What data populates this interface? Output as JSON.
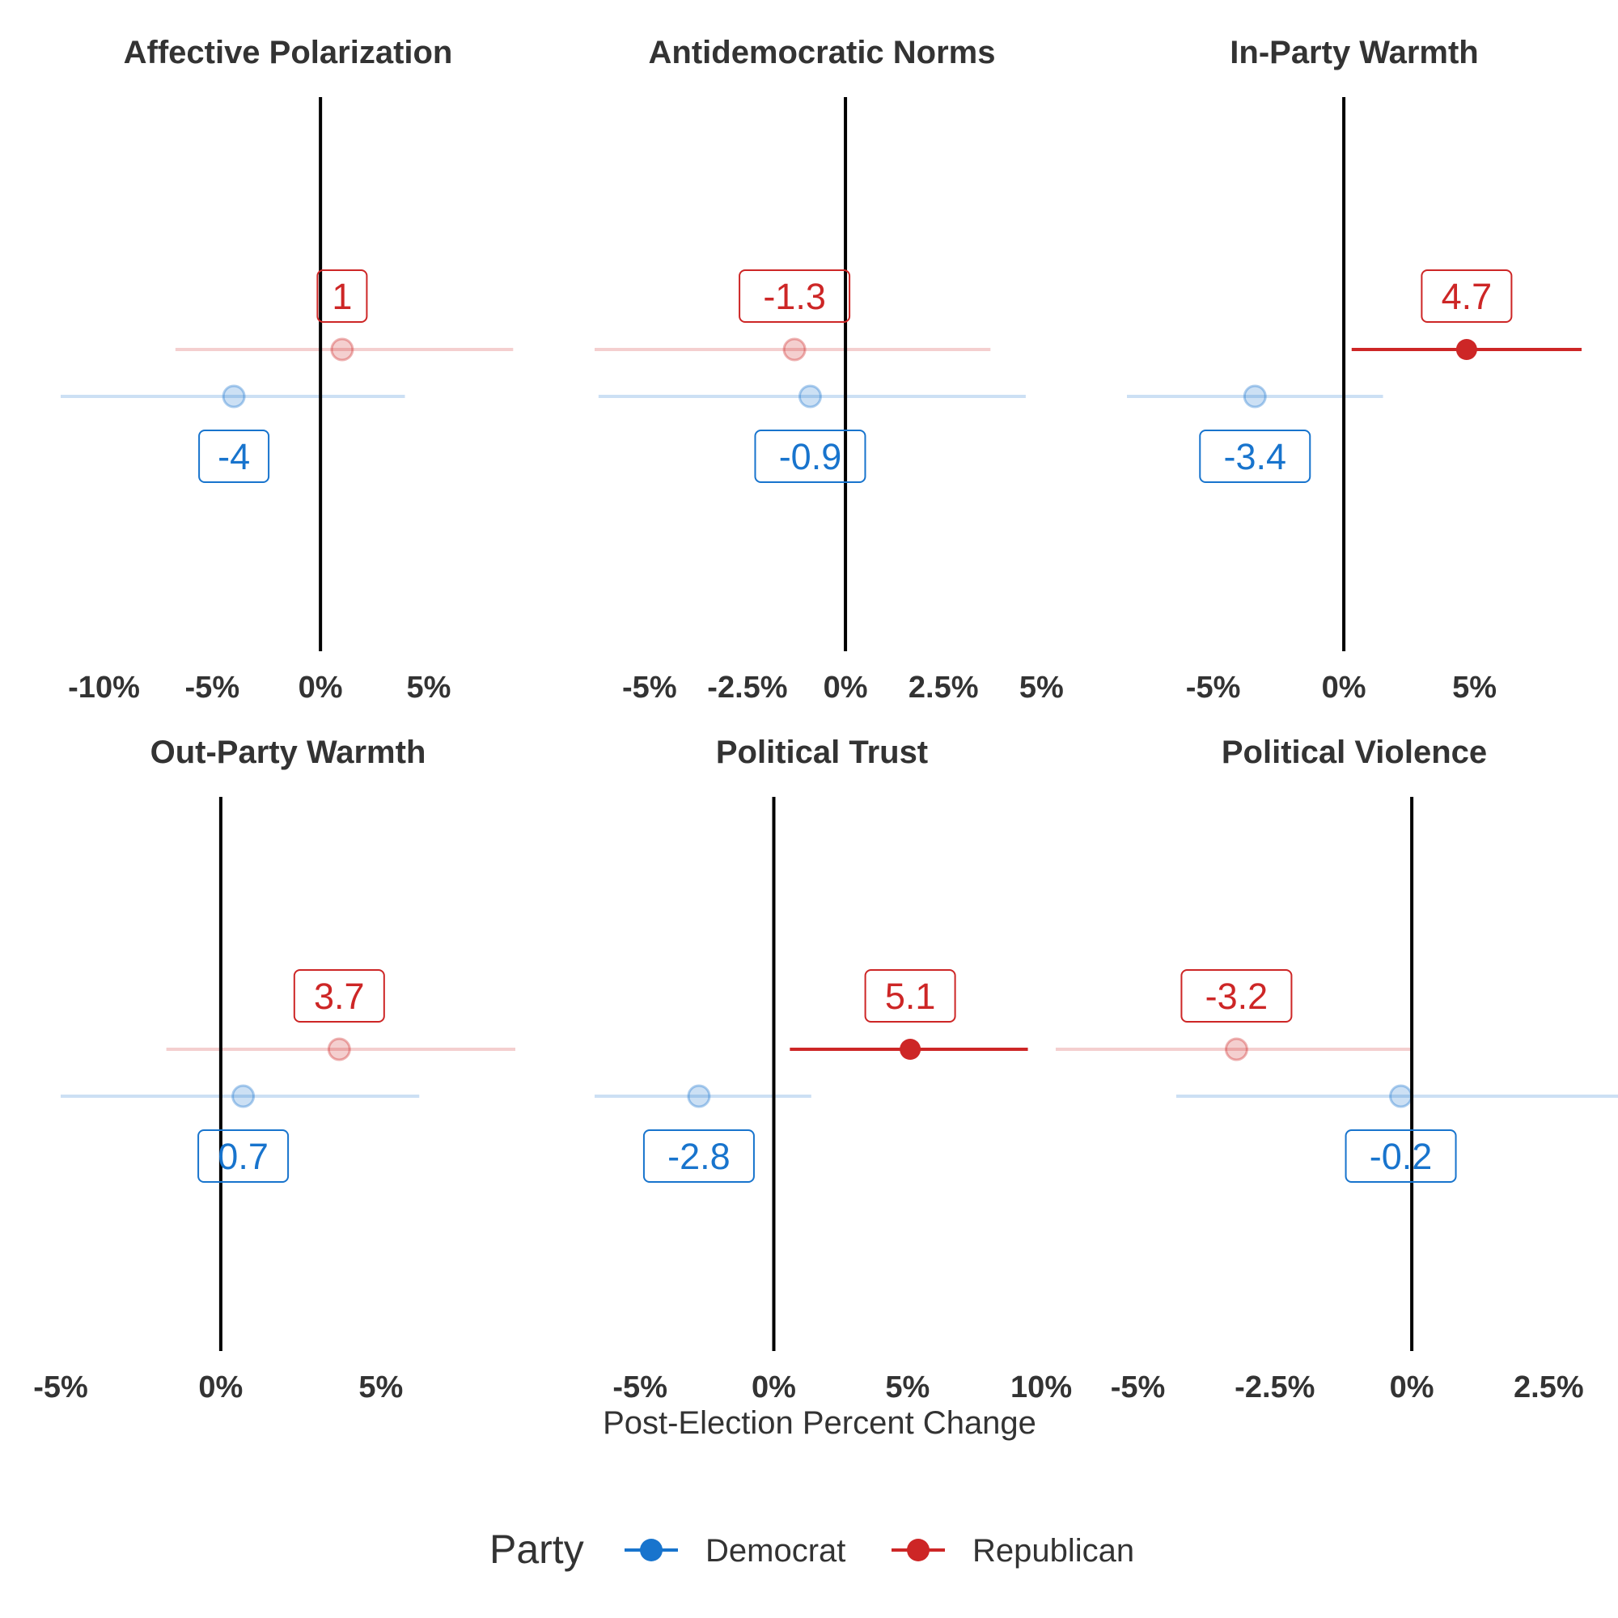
{
  "colors": {
    "Democrat": "#1874CD",
    "Republican": "#CD2626",
    "zero_line": "#000000",
    "text": "#333333"
  },
  "x_axis_title": "Post-Election Percent Change",
  "legend": {
    "title": "Party",
    "entries": [
      "Democrat",
      "Republican"
    ]
  },
  "chart_data": [
    {
      "type": "pointrange",
      "title": "Affective Polarization",
      "xlim": [
        -12,
        9
      ],
      "ticks": [
        -10,
        -5,
        0,
        5
      ],
      "tick_labels": [
        "-10%",
        "-5%",
        "0%",
        "5%"
      ],
      "series": [
        {
          "name": "Republican",
          "estimate": 1.0,
          "ci": [
            -6.7,
            8.9
          ],
          "label": "1",
          "significant": false
        },
        {
          "name": "Democrat",
          "estimate": -4.0,
          "ci": [
            -12.0,
            3.9
          ],
          "label": "-4",
          "significant": false
        }
      ]
    },
    {
      "type": "pointrange",
      "title": "Antidemocratic Norms",
      "xlim": [
        -6.4,
        5.2
      ],
      "ticks": [
        -5,
        -2.5,
        0,
        2.5,
        5
      ],
      "tick_labels": [
        "-5%",
        "-2.5%",
        "0%",
        "2.5%",
        "5%"
      ],
      "series": [
        {
          "name": "Republican",
          "estimate": -1.3,
          "ci": [
            -6.4,
            3.7
          ],
          "label": "-1.3",
          "significant": false
        },
        {
          "name": "Democrat",
          "estimate": -0.9,
          "ci": [
            -6.3,
            4.6
          ],
          "label": "-0.9",
          "significant": false
        }
      ]
    },
    {
      "type": "pointrange",
      "title": "In-Party Warmth",
      "xlim": [
        -8.3,
        9.1
      ],
      "ticks": [
        -5,
        0,
        5
      ],
      "tick_labels": [
        "-5%",
        "0%",
        "5%"
      ],
      "series": [
        {
          "name": "Republican",
          "estimate": 4.7,
          "ci": [
            0.3,
            9.1
          ],
          "label": "4.7",
          "significant": true
        },
        {
          "name": "Democrat",
          "estimate": -3.4,
          "ci": [
            -8.3,
            1.5
          ],
          "label": "-3.4",
          "significant": false
        }
      ]
    },
    {
      "type": "pointrange",
      "title": "Out-Party Warmth",
      "xlim": [
        -5,
        9.2
      ],
      "ticks": [
        -5,
        0,
        5
      ],
      "tick_labels": [
        "-5%",
        "0%",
        "5%"
      ],
      "series": [
        {
          "name": "Republican",
          "estimate": 3.7,
          "ci": [
            -1.7,
            9.2
          ],
          "label": "3.7",
          "significant": false
        },
        {
          "name": "Democrat",
          "estimate": 0.7,
          "ci": [
            -5.0,
            6.2
          ],
          "label": "0.7",
          "significant": false
        }
      ]
    },
    {
      "type": "pointrange",
      "title": "Political Trust",
      "xlim": [
        -6.7,
        10.3
      ],
      "ticks": [
        -5,
        0,
        5,
        10
      ],
      "tick_labels": [
        "-5%",
        "0%",
        "5%",
        "10%"
      ],
      "series": [
        {
          "name": "Republican",
          "estimate": 5.1,
          "ci": [
            0.6,
            9.5
          ],
          "label": "5.1",
          "significant": true
        },
        {
          "name": "Democrat",
          "estimate": -2.8,
          "ci": [
            -6.7,
            1.4
          ],
          "label": "-2.8",
          "significant": false
        }
      ]
    },
    {
      "type": "pointrange",
      "title": "Political Violence",
      "xlim": [
        -5.2,
        3.1
      ],
      "ticks": [
        -5,
        -2.5,
        0,
        2.5
      ],
      "tick_labels": [
        "-5%",
        "-2.5%",
        "0%",
        "2.5%"
      ],
      "series": [
        {
          "name": "Republican",
          "estimate": -3.2,
          "ci": [
            -6.5,
            0.0
          ],
          "label": "-3.2",
          "significant": false
        },
        {
          "name": "Democrat",
          "estimate": -0.2,
          "ci": [
            -4.3,
            3.9
          ],
          "label": "-0.2",
          "significant": false
        }
      ]
    }
  ]
}
